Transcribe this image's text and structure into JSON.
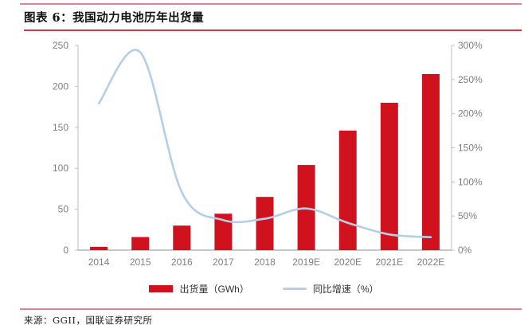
{
  "page": {
    "title": "图表 6：我国动力电池历年出货量",
    "source": "来源：GGII，国联证券研究所"
  },
  "chart_data": {
    "type": "combo-bar-line",
    "categories": [
      "2014",
      "2015",
      "2016",
      "2017",
      "2018",
      "2019E",
      "2020E",
      "2021E",
      "2022E"
    ],
    "series": [
      {
        "name": "出货量（GWh）",
        "type": "bar",
        "axis": "left",
        "color": "#d0121f",
        "values": [
          4,
          16,
          30,
          44.5,
          65,
          104,
          146,
          180,
          215
        ]
      },
      {
        "name": "同比增速（%）",
        "type": "line",
        "axis": "right",
        "color": "#b3cfe8",
        "values": [
          215,
          290,
          85,
          44,
          46,
          61,
          40,
          23,
          19
        ]
      }
    ],
    "left_axis": {
      "min": 0,
      "max": 250,
      "ticks": [
        "0",
        "50",
        "100",
        "150",
        "200",
        "250"
      ]
    },
    "right_axis": {
      "min": 0,
      "max": 300,
      "ticks": [
        "0%",
        "50%",
        "100%",
        "150%",
        "200%",
        "250%",
        "300%"
      ]
    },
    "legend_position": "bottom",
    "gridlines": false,
    "title": "图表 6：我国动力电池历年出货量"
  },
  "colors": {
    "bar_red": "#d0121f",
    "line_blue": "#b3cfe8",
    "pink_rule": "#e2848f",
    "title_rule_red": "#cf3a48",
    "axis_text": "#7f7f7f",
    "axis_line": "#bfbfbf",
    "baseline": "#a6a6a6"
  }
}
